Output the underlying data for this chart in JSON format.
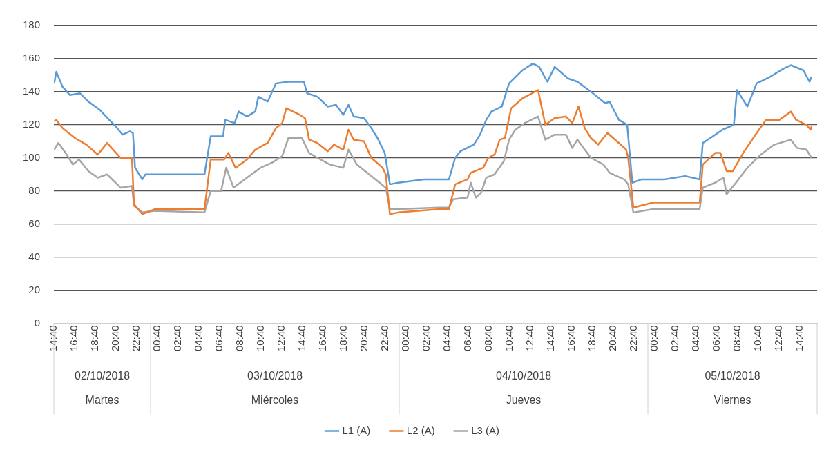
{
  "chart_data": {
    "type": "line",
    "legend": "bottom",
    "grid": "y",
    "marker": "none",
    "line_style": "solid",
    "xlim": [
      "2018-10-02T14:40",
      "2018-10-05T16:20"
    ],
    "xticks": [
      {
        "value": "2018-10-02T14:40",
        "label": "14:40"
      },
      {
        "value": "2018-10-02T16:40",
        "label": "16:40"
      },
      {
        "value": "2018-10-02T18:40",
        "label": "18:40"
      },
      {
        "value": "2018-10-02T20:40",
        "label": "20:40"
      },
      {
        "value": "2018-10-02T22:40",
        "label": "22:40"
      },
      {
        "value": "2018-10-03T00:40",
        "label": "00:40"
      },
      {
        "value": "2018-10-03T02:40",
        "label": "02:40"
      },
      {
        "value": "2018-10-03T04:40",
        "label": "04:40"
      },
      {
        "value": "2018-10-03T06:40",
        "label": "06:40"
      },
      {
        "value": "2018-10-03T08:40",
        "label": "08:40"
      },
      {
        "value": "2018-10-03T10:40",
        "label": "10:40"
      },
      {
        "value": "2018-10-03T12:40",
        "label": "12:40"
      },
      {
        "value": "2018-10-03T14:40",
        "label": "14:40"
      },
      {
        "value": "2018-10-03T16:40",
        "label": "16:40"
      },
      {
        "value": "2018-10-03T18:40",
        "label": "18:40"
      },
      {
        "value": "2018-10-03T20:40",
        "label": "20:40"
      },
      {
        "value": "2018-10-03T22:40",
        "label": "22:40"
      },
      {
        "value": "2018-10-04T00:40",
        "label": "00:40"
      },
      {
        "value": "2018-10-04T02:40",
        "label": "02:40"
      },
      {
        "value": "2018-10-04T04:40",
        "label": "04:40"
      },
      {
        "value": "2018-10-04T06:40",
        "label": "06:40"
      },
      {
        "value": "2018-10-04T08:40",
        "label": "08:40"
      },
      {
        "value": "2018-10-04T10:40",
        "label": "10:40"
      },
      {
        "value": "2018-10-04T12:40",
        "label": "12:40"
      },
      {
        "value": "2018-10-04T14:40",
        "label": "14:40"
      },
      {
        "value": "2018-10-04T16:40",
        "label": "16:40"
      },
      {
        "value": "2018-10-04T18:40",
        "label": "18:40"
      },
      {
        "value": "2018-10-04T20:40",
        "label": "20:40"
      },
      {
        "value": "2018-10-04T22:40",
        "label": "22:40"
      },
      {
        "value": "2018-10-05T00:40",
        "label": "00:40"
      },
      {
        "value": "2018-10-05T02:40",
        "label": "02:40"
      },
      {
        "value": "2018-10-05T04:40",
        "label": "04:40"
      },
      {
        "value": "2018-10-05T06:40",
        "label": "06:40"
      },
      {
        "value": "2018-10-05T08:40",
        "label": "08:40"
      },
      {
        "value": "2018-10-05T10:40",
        "label": "10:40"
      },
      {
        "value": "2018-10-05T12:40",
        "label": "12:40"
      },
      {
        "value": "2018-10-05T14:40",
        "label": "14:40"
      }
    ],
    "ylim": [
      0,
      180
    ],
    "yticks": [
      0,
      20,
      40,
      60,
      80,
      100,
      120,
      140,
      160,
      180
    ],
    "annotations": [
      "02/10/2018",
      "Martes",
      "03/10/2018",
      "Miércoles",
      "04/10/2018",
      "Jueves",
      "05/10/2018",
      "Viernes"
    ],
    "series": [
      {
        "name": "L1 (A)",
        "color": "#5b9bd5",
        "x": [
          "2018-10-02T14:42",
          "2018-10-02T14:54",
          "2018-10-02T15:30",
          "2018-10-02T16:12",
          "2018-10-02T17:12",
          "2018-10-02T18:00",
          "2018-10-02T19:06",
          "2018-10-02T20:00",
          "2018-10-02T20:30",
          "2018-10-02T21:18",
          "2018-10-02T22:00",
          "2018-10-02T22:18",
          "2018-10-02T22:30",
          "2018-10-02T23:12",
          "2018-10-02T23:30",
          "2018-10-03T04:48",
          "2018-10-03T05:12",
          "2018-10-03T05:48",
          "2018-10-03T07:00",
          "2018-10-03T07:12",
          "2018-10-03T08:06",
          "2018-10-03T08:30",
          "2018-10-03T09:18",
          "2018-10-03T10:06",
          "2018-10-03T10:24",
          "2018-10-03T11:18",
          "2018-10-03T12:06",
          "2018-10-03T13:18",
          "2018-10-03T14:48",
          "2018-10-03T15:06",
          "2018-10-03T16:06",
          "2018-10-03T17:06",
          "2018-10-03T17:54",
          "2018-10-03T18:36",
          "2018-10-03T19:06",
          "2018-10-03T19:36",
          "2018-10-03T20:36",
          "2018-10-03T21:18",
          "2018-10-03T21:54",
          "2018-10-03T22:36",
          "2018-10-03T23:06",
          "2018-10-03T23:54",
          "2018-10-04T02:24",
          "2018-10-04T04:48",
          "2018-10-04T05:24",
          "2018-10-04T05:54",
          "2018-10-04T07:12",
          "2018-10-04T07:48",
          "2018-10-04T08:24",
          "2018-10-04T08:54",
          "2018-10-04T09:54",
          "2018-10-04T10:36",
          "2018-10-04T11:54",
          "2018-10-04T12:54",
          "2018-10-04T13:30",
          "2018-10-04T14:18",
          "2018-10-04T15:00",
          "2018-10-04T16:18",
          "2018-10-04T17:12",
          "2018-10-04T18:30",
          "2018-10-04T19:54",
          "2018-10-04T20:18",
          "2018-10-04T21:12",
          "2018-10-04T22:00",
          "2018-10-04T22:30",
          "2018-10-04T23:24",
          "2018-10-05T01:36",
          "2018-10-05T03:36",
          "2018-10-05T05:00",
          "2018-10-05T05:18",
          "2018-10-05T06:30",
          "2018-10-05T07:12",
          "2018-10-05T08:18",
          "2018-10-05T08:36",
          "2018-10-05T09:36",
          "2018-10-05T10:30",
          "2018-10-05T11:48",
          "2018-10-05T13:06",
          "2018-10-05T13:48",
          "2018-10-05T15:00",
          "2018-10-05T15:36",
          "2018-10-05T15:48"
        ],
        "values": [
          145,
          152,
          143,
          138,
          139,
          134,
          129,
          123,
          120,
          114,
          116,
          115,
          94,
          87,
          90,
          90,
          90,
          113,
          113,
          123,
          121,
          128,
          125,
          128,
          137,
          134,
          145,
          146,
          146,
          139,
          137,
          131,
          132,
          126,
          132,
          125,
          124,
          118,
          112,
          103,
          84,
          85,
          87,
          87,
          100,
          104,
          108,
          114,
          123,
          128,
          131,
          145,
          153,
          157,
          155,
          146,
          155,
          148,
          146,
          140,
          133,
          134,
          123,
          120,
          85,
          87,
          87,
          89,
          87,
          109,
          114,
          117,
          120,
          141,
          131,
          145,
          149,
          154,
          156,
          153,
          146,
          149
        ]
      },
      {
        "name": "L2 (A)",
        "color": "#ed7d31",
        "x": [
          "2018-10-02T14:42",
          "2018-10-02T14:54",
          "2018-10-02T15:30",
          "2018-10-02T16:42",
          "2018-10-02T17:48",
          "2018-10-02T18:54",
          "2018-10-02T19:48",
          "2018-10-02T21:06",
          "2018-10-02T22:12",
          "2018-10-02T22:24",
          "2018-10-02T23:12",
          "2018-10-03T00:24",
          "2018-10-03T05:12",
          "2018-10-03T05:48",
          "2018-10-03T07:06",
          "2018-10-03T07:30",
          "2018-10-03T08:12",
          "2018-10-03T09:18",
          "2018-10-03T10:06",
          "2018-10-03T11:18",
          "2018-10-03T12:06",
          "2018-10-03T12:42",
          "2018-10-03T13:06",
          "2018-10-03T14:24",
          "2018-10-03T14:54",
          "2018-10-03T15:18",
          "2018-10-03T16:06",
          "2018-10-03T17:06",
          "2018-10-03T17:42",
          "2018-10-03T18:36",
          "2018-10-03T19:06",
          "2018-10-03T19:36",
          "2018-10-03T20:36",
          "2018-10-03T21:18",
          "2018-10-03T22:24",
          "2018-10-03T22:42",
          "2018-10-03T23:06",
          "2018-10-03T23:54",
          "2018-10-04T03:54",
          "2018-10-04T04:48",
          "2018-10-04T05:24",
          "2018-10-04T06:36",
          "2018-10-04T06:54",
          "2018-10-04T08:06",
          "2018-10-04T08:36",
          "2018-10-04T09:12",
          "2018-10-04T09:42",
          "2018-10-04T10:12",
          "2018-10-04T10:48",
          "2018-10-04T11:54",
          "2018-10-04T13:24",
          "2018-10-04T14:06",
          "2018-10-04T15:00",
          "2018-10-04T16:06",
          "2018-10-04T16:42",
          "2018-10-04T17:18",
          "2018-10-04T17:54",
          "2018-10-04T18:30",
          "2018-10-04T19:12",
          "2018-10-04T20:06",
          "2018-10-04T21:12",
          "2018-10-04T21:54",
          "2018-10-04T22:06",
          "2018-10-04T22:36",
          "2018-10-05T00:30",
          "2018-10-05T05:00",
          "2018-10-05T05:18",
          "2018-10-05T06:30",
          "2018-10-05T07:00",
          "2018-10-05T07:36",
          "2018-10-05T08:12",
          "2018-10-05T09:12",
          "2018-10-05T10:30",
          "2018-10-05T11:24",
          "2018-10-05T12:42",
          "2018-10-05T13:48",
          "2018-10-05T14:18",
          "2018-10-05T15:18",
          "2018-10-05T15:42",
          "2018-10-05T15:48"
        ],
        "values": [
          122,
          123,
          118,
          112,
          108,
          102,
          109,
          100,
          100,
          72,
          66,
          69,
          69,
          99,
          99,
          103,
          94,
          99,
          105,
          109,
          118,
          121,
          130,
          126,
          124,
          111,
          109,
          104,
          108,
          105,
          117,
          111,
          110,
          100,
          94,
          90,
          66,
          67,
          69,
          69,
          84,
          87,
          91,
          94,
          100,
          102,
          111,
          112,
          130,
          136,
          141,
          120,
          124,
          125,
          121,
          131,
          118,
          112,
          108,
          115,
          109,
          105,
          100,
          70,
          73,
          73,
          96,
          103,
          103,
          92,
          92,
          103,
          115,
          123,
          123,
          128,
          123,
          120,
          117,
          119
        ]
      },
      {
        "name": "L3 (A)",
        "color": "#a5a5a5",
        "x": [
          "2018-10-02T14:42",
          "2018-10-02T15:06",
          "2018-10-02T15:48",
          "2018-10-02T16:30",
          "2018-10-02T17:06",
          "2018-10-02T18:00",
          "2018-10-02T18:54",
          "2018-10-02T19:48",
          "2018-10-02T21:06",
          "2018-10-02T22:12",
          "2018-10-02T22:24",
          "2018-10-02T23:12",
          "2018-10-03T00:24",
          "2018-10-03T05:12",
          "2018-10-03T05:48",
          "2018-10-03T06:48",
          "2018-10-03T07:18",
          "2018-10-03T08:00",
          "2018-10-03T09:18",
          "2018-10-03T10:36",
          "2018-10-03T11:42",
          "2018-10-03T12:42",
          "2018-10-03T13:18",
          "2018-10-03T14:36",
          "2018-10-03T15:18",
          "2018-10-03T16:06",
          "2018-10-03T17:18",
          "2018-10-03T18:36",
          "2018-10-03T19:06",
          "2018-10-03T19:54",
          "2018-10-03T21:06",
          "2018-10-03T22:06",
          "2018-10-03T22:42",
          "2018-10-03T23:06",
          "2018-10-03T23:54",
          "2018-10-04T03:54",
          "2018-10-04T04:48",
          "2018-10-04T05:12",
          "2018-10-04T06:36",
          "2018-10-04T06:54",
          "2018-10-04T07:24",
          "2018-10-04T07:54",
          "2018-10-04T08:24",
          "2018-10-04T09:12",
          "2018-10-04T10:06",
          "2018-10-04T10:36",
          "2018-10-04T11:12",
          "2018-10-04T12:06",
          "2018-10-04T13:24",
          "2018-10-04T14:06",
          "2018-10-04T15:00",
          "2018-10-04T16:06",
          "2018-10-04T16:42",
          "2018-10-04T17:12",
          "2018-10-04T18:30",
          "2018-10-04T19:42",
          "2018-10-04T20:18",
          "2018-10-04T21:42",
          "2018-10-04T22:06",
          "2018-10-04T22:36",
          "2018-10-05T00:30",
          "2018-10-05T05:00",
          "2018-10-05T05:18",
          "2018-10-05T06:30",
          "2018-10-05T07:18",
          "2018-10-05T07:36",
          "2018-10-05T08:30",
          "2018-10-05T09:36",
          "2018-10-05T10:54",
          "2018-10-05T12:12",
          "2018-10-05T13:48",
          "2018-10-05T14:24",
          "2018-10-05T15:18",
          "2018-10-05T15:48"
        ],
        "values": [
          105,
          109,
          103,
          96,
          99,
          92,
          88,
          90,
          82,
          83,
          71,
          67,
          68,
          67,
          80,
          80,
          94,
          82,
          88,
          94,
          97,
          101,
          112,
          112,
          103,
          100,
          96,
          94,
          105,
          96,
          90,
          85,
          82,
          69,
          69,
          70,
          70,
          75,
          76,
          85,
          76,
          79,
          88,
          90,
          98,
          111,
          117,
          121,
          125,
          111,
          114,
          114,
          106,
          111,
          100,
          96,
          91,
          87,
          84,
          67,
          69,
          69,
          82,
          85,
          88,
          78,
          85,
          94,
          102,
          108,
          111,
          106,
          105,
          100
        ]
      }
    ]
  }
}
